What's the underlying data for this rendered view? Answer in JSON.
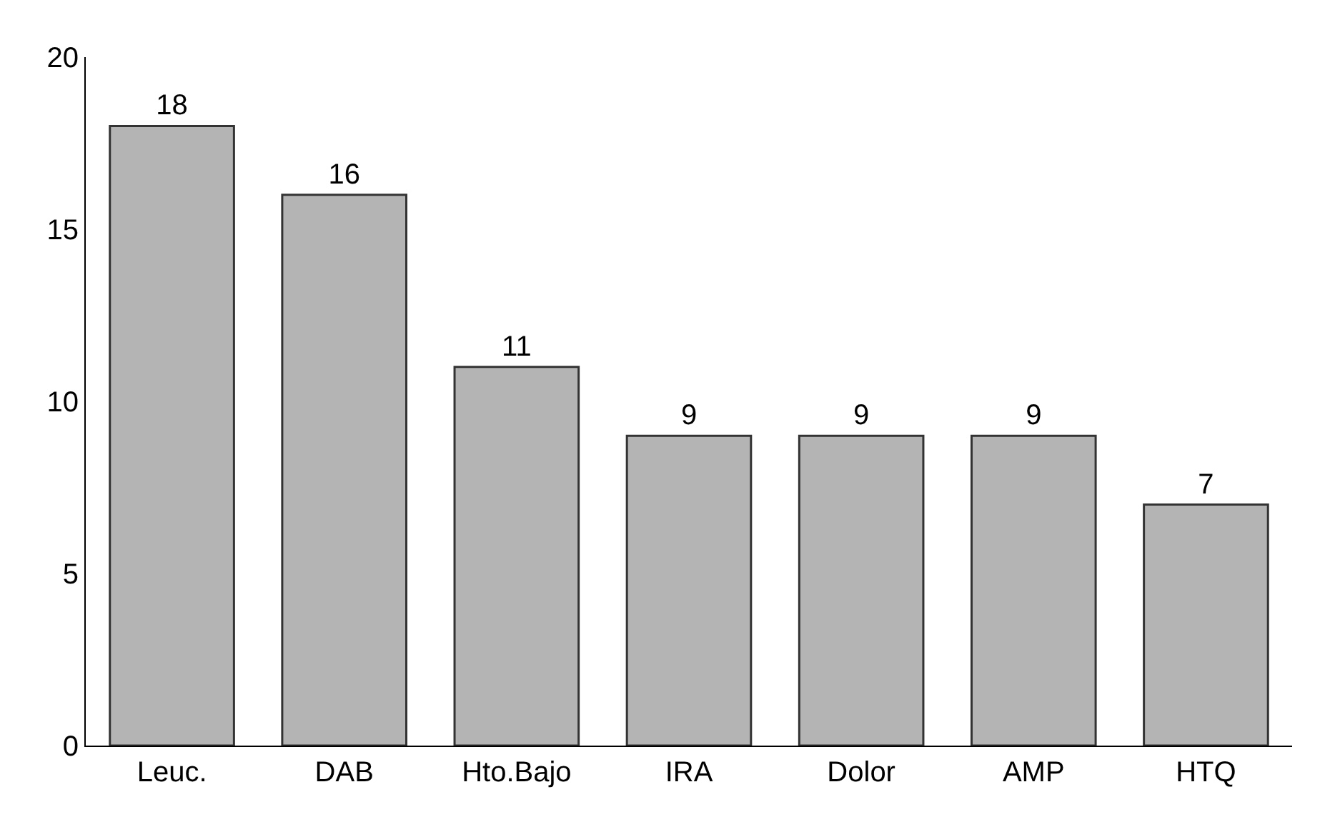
{
  "chart_data": {
    "type": "bar",
    "categories": [
      "Leuc.",
      "DAB",
      "Hto.Bajo",
      "IRA",
      "Dolor",
      "AMP",
      "HTQ"
    ],
    "values": [
      18,
      16,
      11,
      9,
      9,
      9,
      7
    ],
    "color": "#b4b4b4",
    "ylim": [
      0,
      20
    ],
    "yticks": [
      0,
      5,
      10,
      15,
      20
    ],
    "grid": false,
    "data_labels": true
  }
}
